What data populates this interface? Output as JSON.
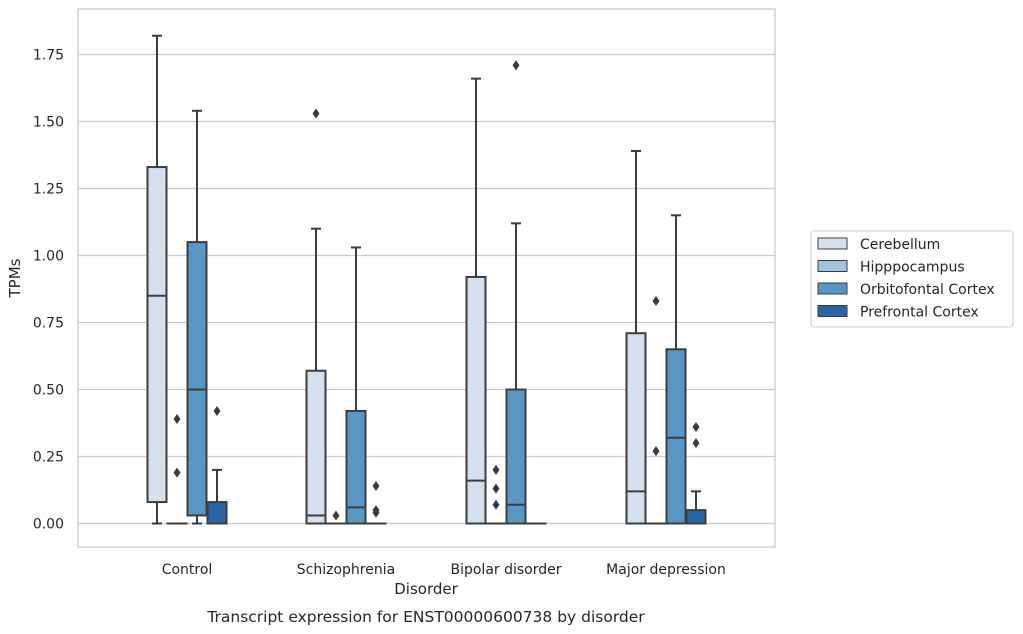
{
  "caption": "Transcript expression for ENST00000600738 by disorder",
  "colors": {
    "Cerebellum": "#d3e1ef",
    "Hipppocampus": "#a0c4dd",
    "Orbitofontal Cortex": "#5896c4",
    "Prefrontal Cortex": "#2a65a2",
    "box_edge": "#3d3d3d",
    "grid": "#cccccc",
    "frame": "#cccccc"
  },
  "chart_data": {
    "type": "box",
    "title": "",
    "xlabel": "Disorder",
    "ylabel": "TPMs",
    "ylim": [
      -0.09,
      1.91
    ],
    "yticks": [
      0.0,
      0.25,
      0.5,
      0.75,
      1.0,
      1.25,
      1.5,
      1.75
    ],
    "ytick_labels": [
      "0.00",
      "0.25",
      "0.50",
      "0.75",
      "1.00",
      "1.25",
      "1.50",
      "1.75"
    ],
    "grid": true,
    "legend_position": "right",
    "categories": [
      "Control",
      "Schizophrenia",
      "Bipolar disorder",
      "Major depression"
    ],
    "series": [
      {
        "name": "Cerebellum",
        "boxes": [
          {
            "q1": 0.08,
            "median": 0.85,
            "q3": 1.33,
            "whisker_low": 0.0,
            "whisker_high": 1.82,
            "outliers": []
          },
          {
            "q1": 0.0,
            "median": 0.03,
            "q3": 0.57,
            "whisker_low": 0.0,
            "whisker_high": 1.1,
            "outliers": [
              1.53
            ]
          },
          {
            "q1": 0.0,
            "median": 0.16,
            "q3": 0.92,
            "whisker_low": 0.0,
            "whisker_high": 1.66,
            "outliers": []
          },
          {
            "q1": 0.0,
            "median": 0.12,
            "q3": 0.71,
            "whisker_low": 0.0,
            "whisker_high": 1.39,
            "outliers": []
          }
        ]
      },
      {
        "name": "Hipppocampus",
        "boxes": [
          {
            "q1": 0.0,
            "median": 0.0,
            "q3": 0.0,
            "whisker_low": 0.0,
            "whisker_high": 0.0,
            "outliers": [
              0.19,
              0.39
            ]
          },
          {
            "q1": 0.0,
            "median": 0.0,
            "q3": 0.0,
            "whisker_low": 0.0,
            "whisker_high": 0.0,
            "outliers": [
              0.03
            ]
          },
          {
            "q1": 0.0,
            "median": 0.0,
            "q3": 0.0,
            "whisker_low": 0.0,
            "whisker_high": 0.0,
            "outliers": [
              0.07,
              0.13,
              0.2
            ]
          },
          {
            "q1": 0.0,
            "median": 0.0,
            "q3": 0.0,
            "whisker_low": 0.0,
            "whisker_high": 0.0,
            "outliers": [
              0.27,
              0.83
            ]
          }
        ]
      },
      {
        "name": "Orbitofontal Cortex",
        "boxes": [
          {
            "q1": 0.03,
            "median": 0.5,
            "q3": 1.05,
            "whisker_low": 0.0,
            "whisker_high": 1.54,
            "outliers": []
          },
          {
            "q1": 0.0,
            "median": 0.06,
            "q3": 0.42,
            "whisker_low": 0.0,
            "whisker_high": 1.03,
            "outliers": []
          },
          {
            "q1": 0.0,
            "median": 0.07,
            "q3": 0.5,
            "whisker_low": 0.0,
            "whisker_high": 1.12,
            "outliers": [
              1.71
            ]
          },
          {
            "q1": 0.0,
            "median": 0.32,
            "q3": 0.65,
            "whisker_low": 0.0,
            "whisker_high": 1.15,
            "outliers": []
          }
        ]
      },
      {
        "name": "Prefrontal Cortex",
        "boxes": [
          {
            "q1": 0.0,
            "median": 0.0,
            "q3": 0.08,
            "whisker_low": 0.0,
            "whisker_high": 0.2,
            "outliers": [
              0.42
            ]
          },
          {
            "q1": 0.0,
            "median": 0.0,
            "q3": 0.0,
            "whisker_low": 0.0,
            "whisker_high": 0.0,
            "outliers": [
              0.04,
              0.05,
              0.14
            ]
          },
          {
            "q1": 0.0,
            "median": 0.0,
            "q3": 0.0,
            "whisker_low": 0.0,
            "whisker_high": 0.0,
            "outliers": []
          },
          {
            "q1": 0.0,
            "median": 0.0,
            "q3": 0.05,
            "whisker_low": 0.0,
            "whisker_high": 0.12,
            "outliers": [
              0.3,
              0.36
            ]
          }
        ]
      }
    ]
  }
}
